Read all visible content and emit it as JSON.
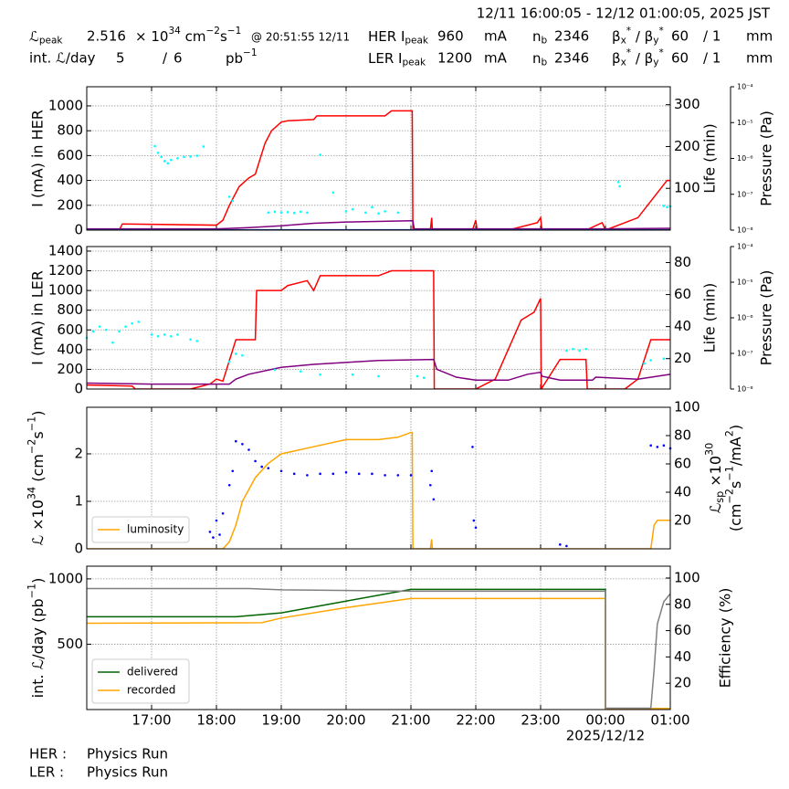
{
  "header": {
    "time_range": "12/11 16:00:05 - 12/12 01:00:05, 2025 JST",
    "lumi_peak_label": [
      {
        "text": "ℒ"
      },
      {
        "text": "peak",
        "pos": "sub"
      }
    ],
    "lumi_peak_value": "2.516",
    "lumi_unit": [
      {
        "text": "× 10"
      },
      {
        "text": "34",
        "pos": "sup"
      },
      {
        "text": " cm"
      },
      {
        "text": "−2",
        "pos": "sup"
      },
      {
        "text": "s"
      },
      {
        "text": "−1",
        "pos": "sup"
      }
    ],
    "lumi_peak_time": "@ 20:51:55 12/11",
    "int_lumi_label": "int. ℒ/day",
    "int_lumi_first": "5",
    "int_lumi_sep": "/",
    "int_lumi_second": "6",
    "int_lumi_unit": [
      {
        "text": "pb"
      },
      {
        "text": "−1",
        "pos": "sup"
      }
    ],
    "rings": [
      {
        "label": [
          {
            "text": "HER I"
          },
          {
            "text": "peak",
            "pos": "sub"
          }
        ],
        "current": "960",
        "current_unit": "mA",
        "nb_label": [
          {
            "text": "n"
          },
          {
            "text": "b",
            "pos": "sub"
          }
        ],
        "nb": "2346",
        "beta_label": [
          {
            "text": "β"
          },
          {
            "text": "x",
            "pos": "sub"
          },
          {
            "text": "*",
            "pos": "sup"
          },
          {
            "text": " / β"
          },
          {
            "text": "y",
            "pos": "sub"
          },
          {
            "text": "*",
            "pos": "sup"
          }
        ],
        "beta_x": "60",
        "beta_y": "/ 1",
        "beta_unit": "mm"
      },
      {
        "label": [
          {
            "text": "LER I"
          },
          {
            "text": "peak",
            "pos": "sub"
          }
        ],
        "current": "1200",
        "current_unit": "mA",
        "nb_label": [
          {
            "text": "n"
          },
          {
            "text": "b",
            "pos": "sub"
          }
        ],
        "nb": "2346",
        "beta_label": [
          {
            "text": "β"
          },
          {
            "text": "x",
            "pos": "sub"
          },
          {
            "text": "*",
            "pos": "sup"
          },
          {
            "text": " / β"
          },
          {
            "text": "y",
            "pos": "sub"
          },
          {
            "text": "*",
            "pos": "sup"
          }
        ],
        "beta_x": "60",
        "beta_y": "/ 1",
        "beta_unit": "mm"
      }
    ]
  },
  "footer": {
    "her_label": "HER :",
    "her_mode": "Physics Run",
    "ler_label": "LER :",
    "ler_mode": "Physics Run"
  },
  "chart_data": [
    {
      "type": "line",
      "grid": true,
      "ylabel": "I (mA) in HER",
      "y2label": "Life (min)",
      "y3label": "Pressure (Pa)",
      "y3log": true,
      "xlim": [
        16,
        25
      ],
      "xticks": [
        17,
        18,
        19,
        20,
        21,
        22,
        23,
        24
      ],
      "ylim": [
        0,
        1154
      ],
      "yticks": [
        0,
        200,
        400,
        600,
        800,
        1000
      ],
      "y2lim": [
        0,
        343
      ],
      "y2ticks": [
        100,
        200,
        300
      ],
      "y3lim": [
        1e-08,
        0.0001
      ],
      "y3ticks": [
        {
          "value": 1e-08,
          "label": "10⁻⁸"
        },
        {
          "value": 1e-07,
          "label": "10⁻⁷"
        },
        {
          "value": 1e-06,
          "label": "10⁻⁶"
        },
        {
          "value": 1e-05,
          "label": "10⁻⁵"
        },
        {
          "value": 0.0001,
          "label": "10⁻⁴"
        }
      ],
      "series": [
        {
          "type": "line",
          "color": "#ff0000",
          "x": [
            16,
            16.5,
            16.55,
            18.0,
            18.1,
            18.2,
            18.35,
            18.5,
            18.6,
            18.75,
            18.85,
            19.0,
            19.1,
            19.5,
            19.55,
            20.0,
            20.6,
            20.7,
            21.02,
            21.03,
            21.3,
            21.32,
            21.33,
            21.95,
            22.0,
            22.02,
            22.5,
            22.95,
            23.0,
            23.02,
            23.7,
            23.95,
            24.0,
            24.5,
            24.8,
            24.95,
            25
          ],
          "values": [
            0,
            0,
            50,
            40,
            80,
            200,
            350,
            420,
            450,
            700,
            800,
            870,
            880,
            890,
            920,
            920,
            920,
            960,
            960,
            0,
            0,
            100,
            0,
            0,
            80,
            0,
            0,
            60,
            100,
            0,
            0,
            60,
            0,
            100,
            300,
            400,
            400
          ]
        },
        {
          "type": "line",
          "color": "#800080",
          "x": [
            16,
            18.0,
            18.5,
            19.0,
            19.5,
            20.0,
            21.0,
            21.03,
            21.05,
            22,
            23,
            24,
            25
          ],
          "values": [
            10,
            10,
            20,
            35,
            55,
            65,
            75,
            75,
            10,
            10,
            10,
            10,
            15
          ]
        },
        {
          "type": "line",
          "color": "#1f3a93",
          "x": [
            16,
            25
          ],
          "values": [
            3,
            3
          ]
        },
        {
          "type": "scatter",
          "color": "#00ffff",
          "axis": "y2",
          "x": [
            17.05,
            17.1,
            17.15,
            17.2,
            17.25,
            17.3,
            17.4,
            17.5,
            17.6,
            17.7,
            17.8,
            18.2,
            18.25,
            18.8,
            18.9,
            19.0,
            19.1,
            19.2,
            19.3,
            19.4,
            19.6,
            19.8,
            20.0,
            20.1,
            20.3,
            20.4,
            20.5,
            20.6,
            20.8,
            24.2,
            24.22,
            24.9,
            24.95,
            25.0
          ],
          "values": [
            201,
            185,
            175,
            165,
            160,
            168,
            172,
            175,
            176,
            178,
            200,
            80,
            70,
            42,
            44,
            42,
            43,
            41,
            44,
            42,
            180,
            90,
            45,
            50,
            42,
            55,
            40,
            45,
            42,
            115,
            105,
            58,
            55,
            57
          ]
        }
      ]
    },
    {
      "type": "line",
      "grid": true,
      "ylabel": "I (mA) in LER",
      "y2label": "Life (min)",
      "y3label": "Pressure (Pa)",
      "y3log": true,
      "xlim": [
        16,
        25
      ],
      "xticks": [
        17,
        18,
        19,
        20,
        21,
        22,
        23,
        24
      ],
      "ylim": [
        0,
        1446
      ],
      "yticks": [
        0,
        200,
        400,
        600,
        800,
        1000,
        1200,
        1400
      ],
      "y2lim": [
        1,
        90
      ],
      "y2ticks": [
        20,
        40,
        60,
        80
      ],
      "y3lim": [
        1e-08,
        0.0001
      ],
      "y3ticks": [
        {
          "value": 1e-08,
          "label": "10⁻⁸"
        },
        {
          "value": 1e-07,
          "label": "10⁻⁷"
        },
        {
          "value": 1e-06,
          "label": "10⁻⁶"
        },
        {
          "value": 1e-05,
          "label": "10⁻⁵"
        },
        {
          "value": 0.0001,
          "label": "10⁻⁴"
        }
      ],
      "series": [
        {
          "type": "line",
          "color": "#ff0000",
          "x": [
            16,
            16.7,
            16.75,
            17.6,
            17.9,
            18.0,
            18.1,
            18.3,
            18.6,
            18.62,
            19.0,
            19.1,
            19.4,
            19.5,
            19.6,
            20.5,
            20.7,
            21.35,
            21.36,
            22.0,
            22.3,
            22.5,
            22.7,
            22.9,
            23.0,
            23.01,
            23.3,
            23.7,
            23.72,
            24.3,
            24.5,
            24.7,
            25
          ],
          "values": [
            40,
            30,
            0,
            0,
            50,
            100,
            80,
            500,
            500,
            1000,
            1000,
            1050,
            1100,
            1000,
            1150,
            1150,
            1200,
            1200,
            0,
            0,
            100,
            400,
            700,
            780,
            920,
            0,
            300,
            300,
            0,
            0,
            100,
            500,
            500
          ]
        },
        {
          "type": "line",
          "color": "#800080",
          "x": [
            16,
            17,
            18,
            18.2,
            18.3,
            18.5,
            19.0,
            19.5,
            20.0,
            20.5,
            21.35,
            21.4,
            21.7,
            22.0,
            22.5,
            22.8,
            23.0,
            23.02,
            23.3,
            23.8,
            23.85,
            24.5,
            25
          ],
          "values": [
            60,
            50,
            50,
            50,
            100,
            150,
            220,
            250,
            270,
            290,
            300,
            200,
            120,
            90,
            90,
            150,
            170,
            130,
            90,
            90,
            120,
            100,
            150
          ]
        },
        {
          "type": "scatter",
          "color": "#00ffff",
          "axis": "y2",
          "x": [
            16,
            16.1,
            16.2,
            16.3,
            16.4,
            16.5,
            16.6,
            16.7,
            16.8,
            17.0,
            17.1,
            17.2,
            17.3,
            17.4,
            17.6,
            17.7,
            18.2,
            18.3,
            18.4,
            18.9,
            19.3,
            19.6,
            20.1,
            20.5,
            21.1,
            21.2,
            23.4,
            23.5,
            23.6,
            23.7,
            24.6,
            24.7,
            24.9
          ],
          "values": [
            33,
            37,
            40,
            38,
            30,
            37,
            40,
            42,
            43,
            35,
            34,
            35,
            34,
            35,
            32,
            31,
            18,
            23,
            22,
            13,
            12,
            10,
            10,
            9,
            9,
            8,
            25,
            26,
            25,
            26,
            17,
            19,
            20
          ]
        }
      ]
    },
    {
      "type": "line",
      "grid": true,
      "ylabel": [
        {
          "text": "ℒ ×10"
        },
        {
          "text": "34",
          "pos": "sup"
        },
        {
          "text": " (cm"
        },
        {
          "text": "−2",
          "pos": "sup"
        },
        {
          "text": "s"
        },
        {
          "text": "−1",
          "pos": "sup"
        },
        {
          "text": ")"
        }
      ],
      "y2label": [
        {
          "text": "ℒ"
        },
        {
          "text": "sp",
          "pos": "sub"
        },
        {
          "text": " ×10"
        },
        {
          "text": "30",
          "pos": "sup"
        }
      ],
      "y2label2": [
        {
          "text": "(cm"
        },
        {
          "text": "−2",
          "pos": "sup"
        },
        {
          "text": "s"
        },
        {
          "text": "−1",
          "pos": "sup"
        },
        {
          "text": "/mA"
        },
        {
          "text": "2",
          "pos": "sup"
        },
        {
          "text": ")"
        }
      ],
      "xlim": [
        16,
        25
      ],
      "xticks": [
        17,
        18,
        19,
        20,
        21,
        22,
        23,
        24
      ],
      "ylim": [
        0,
        2.98
      ],
      "yticks": [
        0,
        1,
        2
      ],
      "y2lim": [
        0,
        100
      ],
      "y2ticks": [
        20,
        40,
        60,
        80,
        100
      ],
      "legend": "lower left",
      "series": [
        {
          "type": "line",
          "name": "luminosity",
          "color": "#ffa500",
          "x": [
            16,
            18.1,
            18.2,
            18.3,
            18.4,
            18.6,
            18.8,
            19.0,
            19.5,
            20.0,
            20.5,
            20.8,
            21.0,
            21.02,
            21.03,
            21.3,
            21.32,
            21.33,
            24.7,
            24.75,
            24.8,
            25
          ],
          "values": [
            0,
            0,
            0.15,
            0.5,
            1.0,
            1.5,
            1.8,
            2.0,
            2.15,
            2.3,
            2.3,
            2.35,
            2.45,
            2.45,
            0,
            0,
            0.2,
            0,
            0,
            0.5,
            0.6,
            0.6
          ]
        },
        {
          "type": "scatter",
          "color": "#0000ff",
          "axis": "y2",
          "x": [
            17.9,
            17.95,
            18.0,
            18.05,
            18.1,
            18.2,
            18.25,
            18.3,
            18.4,
            18.5,
            18.6,
            18.7,
            18.8,
            19.0,
            19.2,
            19.4,
            19.6,
            19.8,
            20.0,
            20.2,
            20.4,
            20.6,
            20.8,
            21.0,
            21.3,
            21.32,
            21.35,
            21.95,
            21.97,
            22.0,
            23.3,
            23.4,
            24.7,
            24.8,
            24.9,
            25.0
          ],
          "values": [
            12,
            8,
            20,
            10,
            25,
            45,
            55,
            76,
            74,
            70,
            62,
            58,
            57,
            55,
            53,
            52,
            53,
            53,
            54,
            53,
            53,
            52,
            52,
            52,
            45,
            55,
            35,
            72,
            20,
            15,
            3,
            2,
            73,
            72,
            73,
            71
          ]
        }
      ]
    },
    {
      "type": "line",
      "grid": true,
      "ylabel": [
        {
          "text": "int. ℒ/day (pb"
        },
        {
          "text": "−1",
          "pos": "sup"
        },
        {
          "text": ")"
        }
      ],
      "y2label": "Efficiency (%)",
      "xlim": [
        16,
        25
      ],
      "xticks": [
        {
          "value": 17,
          "label": "17:00"
        },
        {
          "value": 18,
          "label": "18:00"
        },
        {
          "value": 19,
          "label": "19:00"
        },
        {
          "value": 20,
          "label": "20:00"
        },
        {
          "value": 21,
          "label": "21:00"
        },
        {
          "value": 22,
          "label": "22:00"
        },
        {
          "value": 23,
          "label": "23:00"
        },
        {
          "value": 24,
          "label": "00:00"
        },
        {
          "value": 25,
          "label": "01:00"
        }
      ],
      "date_label": "2025/12/12",
      "ylim": [
        0,
        1097
      ],
      "yticks": [
        500,
        1000
      ],
      "y2lim": [
        0,
        109
      ],
      "y2ticks": [
        20,
        40,
        60,
        80,
        100
      ],
      "legend": "lower left",
      "series": [
        {
          "type": "line",
          "name": "delivered",
          "color": "#006400",
          "x": [
            16,
            18.3,
            19.0,
            20.0,
            21.0,
            24.0,
            24.0,
            25
          ],
          "values": [
            710,
            710,
            740,
            830,
            920,
            920,
            7,
            7
          ]
        },
        {
          "type": "line",
          "name": "recorded",
          "color": "#ffa500",
          "x": [
            16,
            18.7,
            19.0,
            20.0,
            21.0,
            24.0,
            24.0,
            25
          ],
          "values": [
            660,
            665,
            700,
            780,
            850,
            850,
            7,
            7
          ]
        },
        {
          "type": "line",
          "color": "#808080",
          "axis": "y2",
          "x": [
            16,
            18.5,
            19.0,
            21.0,
            24.0,
            24.0,
            24.7,
            24.75,
            24.8,
            24.9,
            25
          ],
          "values": [
            92,
            92,
            91,
            90,
            90,
            1,
            1,
            30,
            65,
            82,
            88
          ]
        }
      ]
    }
  ]
}
